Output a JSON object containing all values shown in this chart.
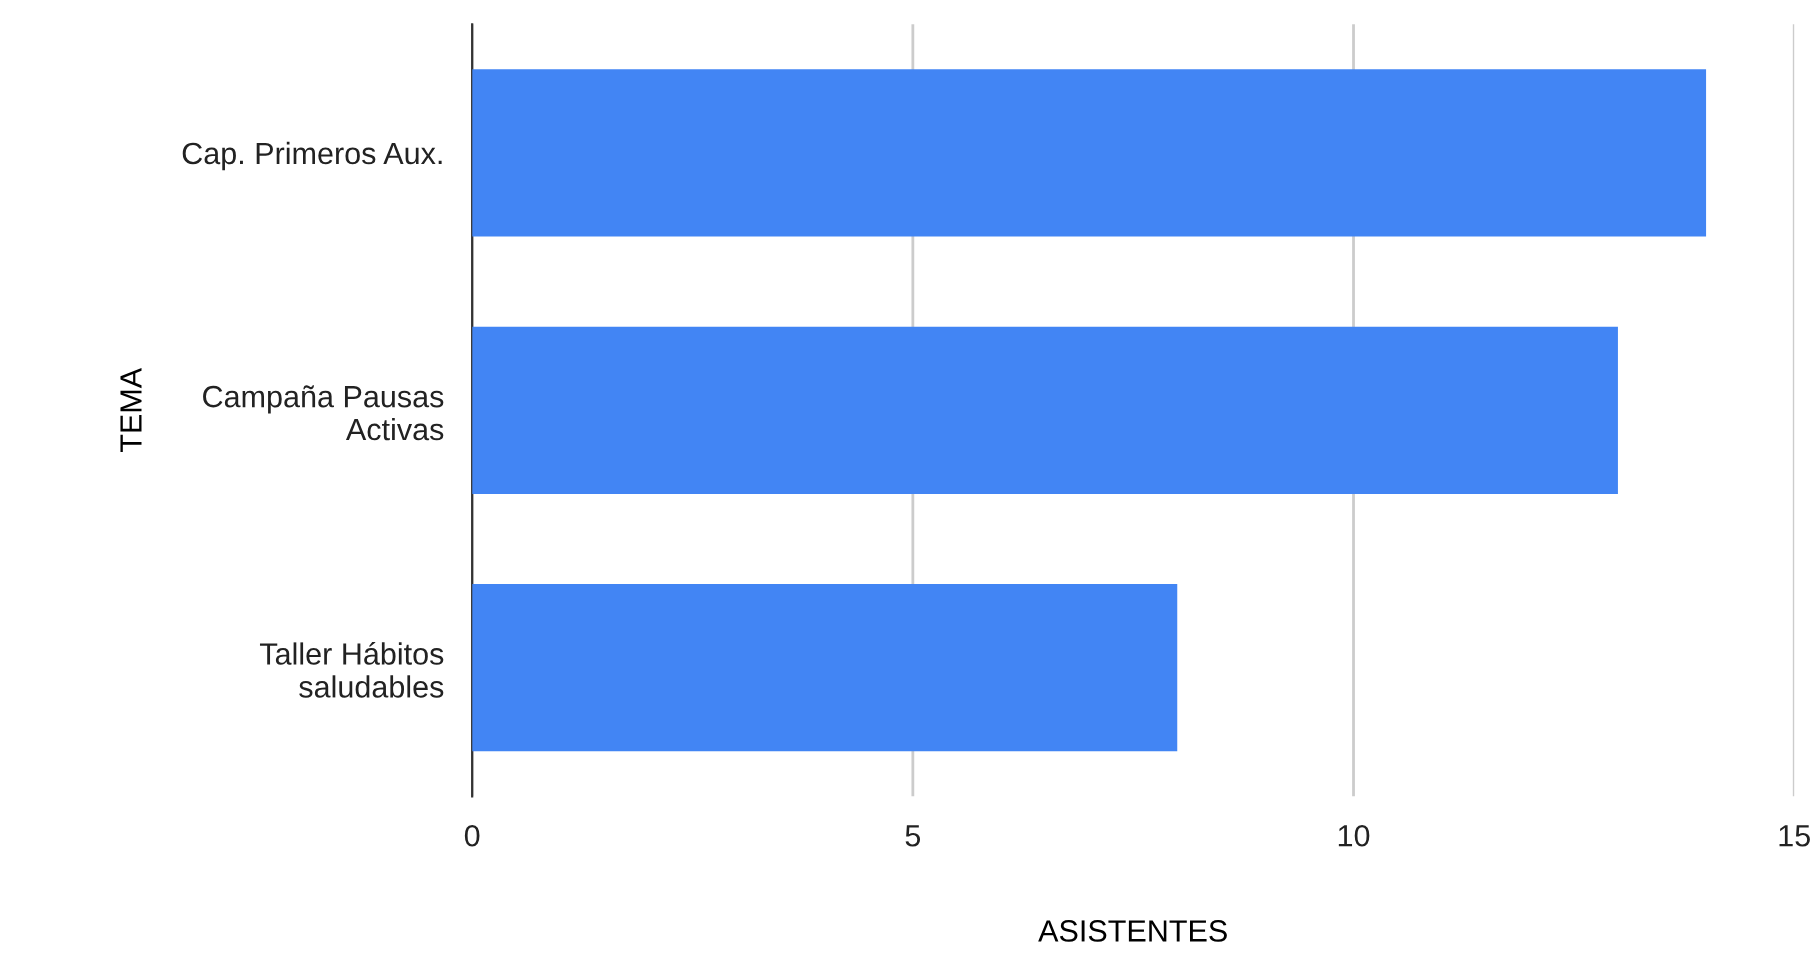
{
  "chart_data": {
    "type": "bar",
    "orientation": "horizontal",
    "xlabel": "ASISTENTES",
    "ylabel": "TEMA",
    "categories": [
      "Cap. Primeros Aux.",
      "Campaña Pausas\nActivas",
      "Taller Hábitos\nsaludables"
    ],
    "values": [
      14,
      13,
      8
    ],
    "color": "#4285f4",
    "xlim": [
      0,
      15
    ],
    "xticks": [
      0,
      5,
      10,
      15
    ],
    "grid": "x"
  }
}
